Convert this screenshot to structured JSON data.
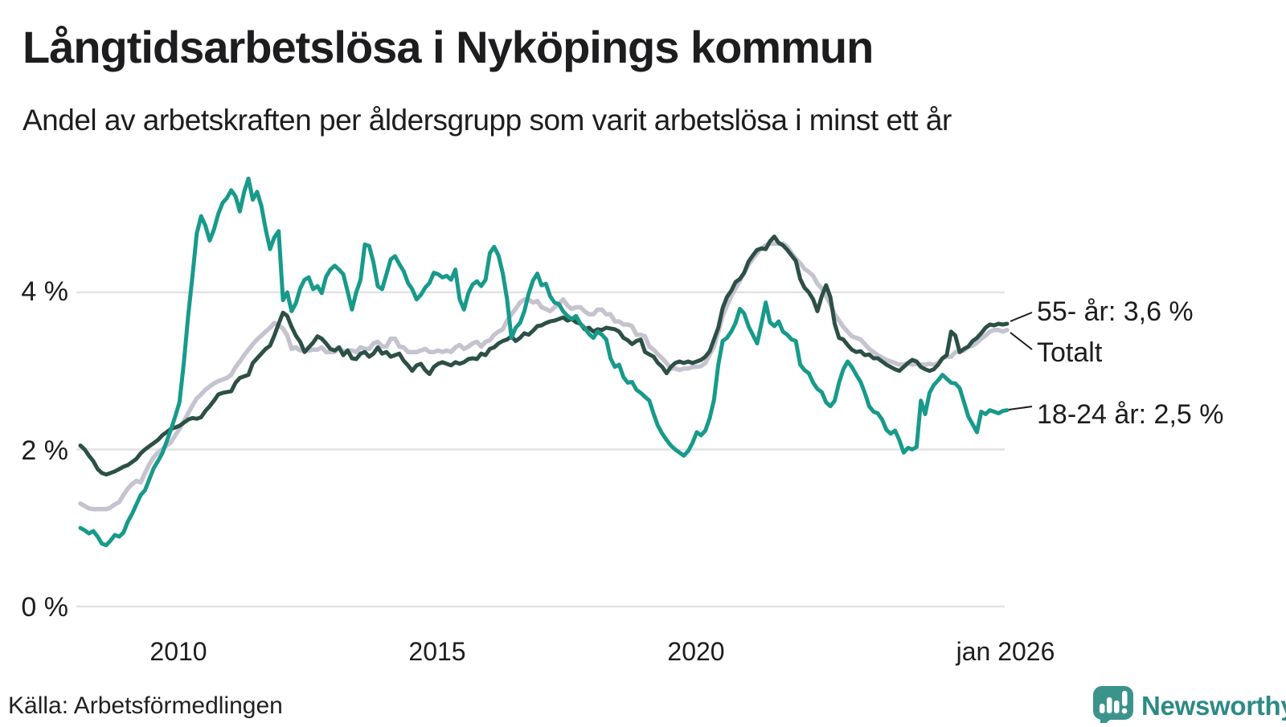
{
  "header": {
    "title": "Långtidsarbetslösa i Nyköpings kommun",
    "subtitle": "Andel av arbetskraften per åldersgrupp som varit arbetslösa i minst ett år"
  },
  "colors": {
    "series_18_24": "#189a8b",
    "series_55": "#2d5046",
    "series_total": "#c5c3d0",
    "gridline": "#e2e2e6",
    "text": "#1d1d1f",
    "leader": "#1d1d1f",
    "logo_mark": "#3c938c",
    "logo_text": "#2d8a85"
  },
  "y_axis": {
    "labels": [
      "4 %",
      "2 %",
      "0 %"
    ],
    "values": [
      4,
      2,
      0
    ]
  },
  "x_axis": {
    "ticks": [
      {
        "label": "2010",
        "year": 2010
      },
      {
        "label": "2015",
        "year": 2015
      },
      {
        "label": "2020",
        "year": 2020
      },
      {
        "label": "jan 2026",
        "year": 2026
      }
    ]
  },
  "annotations": [
    {
      "series": "55- år",
      "label": "55- år: 3,6 %"
    },
    {
      "series": "Totalt",
      "label": "Totalt"
    },
    {
      "series": "18-24 år",
      "label": "18-24 år: 2,5 %"
    }
  ],
  "source": "Källa: Arbetsförmedlingen",
  "logo": {
    "text": "Newsworthy",
    "mark": "speech-bubble-bar-chart"
  },
  "chart_data": {
    "type": "line",
    "title": "Långtidsarbetslösa i Nyköpings kommun",
    "subtitle": "Andel av arbetskraften per åldersgrupp som varit arbetslösa i minst ett år",
    "x_start": "2008-02",
    "x_end": "2026-01",
    "interval": "monthly",
    "ylim": [
      0,
      5.7
    ],
    "yticks": [
      4,
      2,
      0
    ],
    "grid": "horizontal-only",
    "legend_position": "right-end-labels",
    "unit": "% av arbetskraften",
    "series": [
      {
        "name": "Totalt",
        "color_key": "series_total",
        "end_value": 3.5,
        "values": [
          1.31,
          1.28,
          1.25,
          1.24,
          1.24,
          1.24,
          1.24,
          1.26,
          1.3,
          1.33,
          1.42,
          1.5,
          1.56,
          1.6,
          1.58,
          1.7,
          1.81,
          1.9,
          1.96,
          2.0,
          2.05,
          2.09,
          2.18,
          2.26,
          2.36,
          2.46,
          2.56,
          2.65,
          2.7,
          2.76,
          2.8,
          2.84,
          2.87,
          2.89,
          2.91,
          2.95,
          3.05,
          3.12,
          3.2,
          3.27,
          3.34,
          3.4,
          3.45,
          3.5,
          3.55,
          3.61,
          3.58,
          3.54,
          3.45,
          3.28,
          3.3,
          3.26,
          3.26,
          3.26,
          3.27,
          3.27,
          3.3,
          3.24,
          3.24,
          3.24,
          3.3,
          3.24,
          3.26,
          3.26,
          3.24,
          3.3,
          3.28,
          3.28,
          3.35,
          3.37,
          3.31,
          3.31,
          3.41,
          3.41,
          3.31,
          3.3,
          3.24,
          3.24,
          3.24,
          3.26,
          3.28,
          3.24,
          3.24,
          3.26,
          3.24,
          3.26,
          3.24,
          3.3,
          3.33,
          3.28,
          3.31,
          3.35,
          3.37,
          3.31,
          3.37,
          3.39,
          3.46,
          3.5,
          3.53,
          3.64,
          3.72,
          3.79,
          3.87,
          3.91,
          3.91,
          3.87,
          3.89,
          3.81,
          3.79,
          3.76,
          3.81,
          3.85,
          3.91,
          3.83,
          3.79,
          3.81,
          3.81,
          3.76,
          3.72,
          3.72,
          3.78,
          3.78,
          3.72,
          3.72,
          3.63,
          3.63,
          3.59,
          3.59,
          3.57,
          3.46,
          3.46,
          3.44,
          3.31,
          3.27,
          3.21,
          3.16,
          3.1,
          3.03,
          3.03,
          3.01,
          3.03,
          3.03,
          3.05,
          3.05,
          3.06,
          3.1,
          3.21,
          3.31,
          3.5,
          3.7,
          3.83,
          3.95,
          4.05,
          4.15,
          4.25,
          4.35,
          4.43,
          4.5,
          4.56,
          4.6,
          4.62,
          4.62,
          4.62,
          4.62,
          4.58,
          4.5,
          4.43,
          4.37,
          4.3,
          4.26,
          4.21,
          4.11,
          4.05,
          3.95,
          3.85,
          3.72,
          3.64,
          3.56,
          3.5,
          3.44,
          3.42,
          3.4,
          3.34,
          3.28,
          3.24,
          3.2,
          3.17,
          3.14,
          3.12,
          3.1,
          3.08,
          3.08,
          3.1,
          3.08,
          3.09,
          3.08,
          3.08,
          3.09,
          3.08,
          3.1,
          3.16,
          3.18,
          3.18,
          3.24,
          3.24,
          3.26,
          3.31,
          3.32,
          3.36,
          3.41,
          3.45,
          3.5,
          3.52,
          3.52,
          3.5,
          3.52
        ]
      },
      {
        "name": "55- år",
        "color_key": "series_55",
        "end_value": 3.6,
        "values": [
          2.05,
          2.0,
          1.92,
          1.85,
          1.75,
          1.7,
          1.68,
          1.7,
          1.72,
          1.75,
          1.78,
          1.8,
          1.84,
          1.88,
          1.95,
          2.0,
          2.04,
          2.08,
          2.12,
          2.18,
          2.22,
          2.26,
          2.28,
          2.3,
          2.34,
          2.38,
          2.4,
          2.39,
          2.41,
          2.49,
          2.55,
          2.62,
          2.7,
          2.72,
          2.73,
          2.74,
          2.85,
          2.91,
          2.93,
          2.95,
          3.1,
          3.16,
          3.22,
          3.28,
          3.32,
          3.45,
          3.6,
          3.74,
          3.7,
          3.56,
          3.45,
          3.37,
          3.24,
          3.3,
          3.36,
          3.44,
          3.41,
          3.35,
          3.28,
          3.26,
          3.3,
          3.2,
          3.26,
          3.16,
          3.15,
          3.22,
          3.24,
          3.18,
          3.22,
          3.3,
          3.22,
          3.24,
          3.18,
          3.2,
          3.22,
          3.13,
          3.07,
          3.0,
          3.07,
          3.09,
          3.01,
          2.96,
          3.05,
          3.09,
          3.11,
          3.09,
          3.07,
          3.11,
          3.09,
          3.11,
          3.15,
          3.16,
          3.15,
          3.22,
          3.2,
          3.28,
          3.3,
          3.35,
          3.38,
          3.4,
          3.44,
          3.38,
          3.42,
          3.48,
          3.46,
          3.51,
          3.57,
          3.58,
          3.61,
          3.63,
          3.64,
          3.66,
          3.68,
          3.64,
          3.66,
          3.62,
          3.6,
          3.53,
          3.55,
          3.5,
          3.53,
          3.52,
          3.55,
          3.54,
          3.53,
          3.5,
          3.42,
          3.39,
          3.34,
          3.38,
          3.4,
          3.24,
          3.21,
          3.18,
          3.1,
          3.05,
          2.97,
          3.05,
          3.1,
          3.12,
          3.1,
          3.12,
          3.1,
          3.12,
          3.14,
          3.18,
          3.25,
          3.4,
          3.55,
          3.8,
          3.94,
          4.02,
          4.13,
          4.17,
          4.25,
          4.39,
          4.47,
          4.54,
          4.56,
          4.55,
          4.65,
          4.71,
          4.63,
          4.6,
          4.54,
          4.47,
          4.4,
          4.17,
          4.06,
          4.0,
          3.91,
          3.76,
          3.95,
          4.09,
          3.94,
          3.6,
          3.42,
          3.4,
          3.33,
          3.27,
          3.24,
          3.25,
          3.2,
          3.21,
          3.16,
          3.16,
          3.12,
          3.08,
          3.05,
          3.02,
          3.0,
          3.05,
          3.1,
          3.14,
          3.12,
          3.05,
          3.02,
          3.0,
          3.02,
          3.08,
          3.16,
          3.2,
          3.5,
          3.45,
          3.24,
          3.28,
          3.31,
          3.38,
          3.42,
          3.48,
          3.55,
          3.59,
          3.58,
          3.6,
          3.59,
          3.6
        ]
      },
      {
        "name": "18-24 år",
        "color_key": "series_18_24",
        "end_value": 2.5,
        "values": [
          1.0,
          0.97,
          0.93,
          0.96,
          0.89,
          0.8,
          0.78,
          0.84,
          0.91,
          0.89,
          0.94,
          1.08,
          1.18,
          1.3,
          1.42,
          1.48,
          1.62,
          1.76,
          1.85,
          1.95,
          2.1,
          2.25,
          2.42,
          2.6,
          3.1,
          3.7,
          4.2,
          4.75,
          4.97,
          4.85,
          4.66,
          4.8,
          5.0,
          5.14,
          5.2,
          5.3,
          5.22,
          5.03,
          5.28,
          5.45,
          5.18,
          5.28,
          5.1,
          4.8,
          4.55,
          4.7,
          4.78,
          3.9,
          4.0,
          3.76,
          3.86,
          4.05,
          4.16,
          4.19,
          4.04,
          4.08,
          3.99,
          4.2,
          4.29,
          4.34,
          4.29,
          4.23,
          4.01,
          3.78,
          4.0,
          4.16,
          4.61,
          4.59,
          4.38,
          4.08,
          4.04,
          4.23,
          4.42,
          4.46,
          4.36,
          4.27,
          4.12,
          4.04,
          3.91,
          3.97,
          4.06,
          4.12,
          4.25,
          4.23,
          4.19,
          4.21,
          4.16,
          4.29,
          3.91,
          3.78,
          3.99,
          4.1,
          4.14,
          4.08,
          4.16,
          4.5,
          4.58,
          4.47,
          4.24,
          3.91,
          3.42,
          3.55,
          3.61,
          3.76,
          3.98,
          4.15,
          4.24,
          4.09,
          4.11,
          3.95,
          3.87,
          3.85,
          3.76,
          3.7,
          3.66,
          3.7,
          3.6,
          3.55,
          3.47,
          3.42,
          3.5,
          3.46,
          3.4,
          3.16,
          3.05,
          3.08,
          2.92,
          2.85,
          2.86,
          2.76,
          2.72,
          2.67,
          2.62,
          2.45,
          2.3,
          2.2,
          2.12,
          2.05,
          2.0,
          1.96,
          1.92,
          1.98,
          2.08,
          2.22,
          2.18,
          2.24,
          2.4,
          2.63,
          3.08,
          3.38,
          3.42,
          3.5,
          3.61,
          3.79,
          3.73,
          3.57,
          3.46,
          3.35,
          3.6,
          3.87,
          3.62,
          3.57,
          3.63,
          3.5,
          3.46,
          3.4,
          3.38,
          3.08,
          3.01,
          2.97,
          2.85,
          2.77,
          2.73,
          2.6,
          2.55,
          2.62,
          2.85,
          3.02,
          3.12,
          3.05,
          2.95,
          2.86,
          2.72,
          2.55,
          2.48,
          2.46,
          2.38,
          2.25,
          2.2,
          2.24,
          2.12,
          1.96,
          2.02,
          2.0,
          2.03,
          2.62,
          2.45,
          2.72,
          2.82,
          2.88,
          2.95,
          2.9,
          2.85,
          2.84,
          2.78,
          2.6,
          2.42,
          2.32,
          2.22,
          2.48,
          2.45,
          2.5,
          2.48,
          2.46,
          2.49,
          2.5
        ]
      }
    ]
  }
}
